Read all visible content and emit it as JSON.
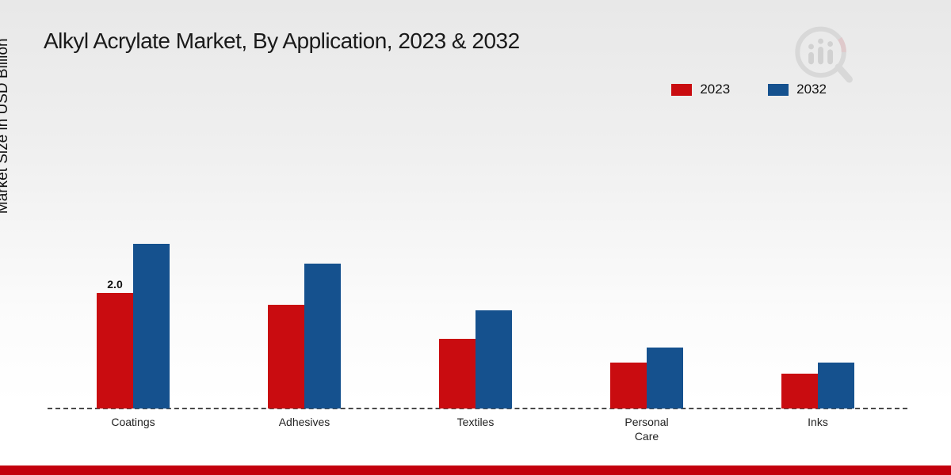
{
  "title": "Alkyl Acrylate Market, By Application, 2023 & 2032",
  "ylabel": "Market Size in USD Billion",
  "legend": {
    "items": [
      {
        "label": "2023",
        "color": "#c90c10"
      },
      {
        "label": "2032",
        "color": "#15518e"
      }
    ]
  },
  "colors": {
    "series_2023": "#c90c10",
    "series_2032": "#15518e",
    "footer_bar": "#c3000d",
    "baseline": "#4a4a4a"
  },
  "chart_data": {
    "type": "bar",
    "title": "Alkyl Acrylate Market, By Application, 2023 & 2032",
    "xlabel": "",
    "ylabel": "Market Size in USD Billion",
    "categories": [
      "Coatings",
      "Adhesives",
      "Textiles",
      "Personal Care",
      "Inks"
    ],
    "series": [
      {
        "name": "2023",
        "color": "#c90c10",
        "values": [
          2.0,
          1.8,
          1.2,
          0.8,
          0.6
        ]
      },
      {
        "name": "2032",
        "color": "#15518e",
        "values": [
          2.85,
          2.5,
          1.7,
          1.05,
          0.8
        ]
      }
    ],
    "data_labels": [
      {
        "category": "Coatings",
        "series": "2023",
        "text": "2.0"
      }
    ],
    "ylim": [
      0,
      3.2
    ],
    "grid": false,
    "axis_style": "dashed-baseline-only",
    "legend_position": "top-right"
  }
}
